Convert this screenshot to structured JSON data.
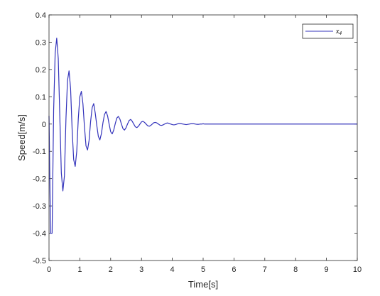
{
  "chart_data": {
    "type": "line",
    "title": "",
    "xlabel": "Time[s]",
    "ylabel": "Speed[m/s]",
    "xlim": [
      0,
      10
    ],
    "ylim": [
      -0.5,
      0.4
    ],
    "xticks": [
      0,
      1,
      2,
      3,
      4,
      5,
      6,
      7,
      8,
      9,
      10
    ],
    "yticks": [
      -0.5,
      -0.4,
      -0.3,
      -0.2,
      -0.1,
      0,
      0.1,
      0.2,
      0.3,
      0.4
    ],
    "xtick_labels": [
      "0",
      "1",
      "2",
      "3",
      "4",
      "5",
      "6",
      "7",
      "8",
      "9",
      "10"
    ],
    "ytick_labels": [
      "-0.5",
      "-0.4",
      "-0.3",
      "-0.2",
      "-0.1",
      "0",
      "0.1",
      "0.2",
      "0.3",
      "0.4"
    ],
    "grid": false,
    "legend_position": "top-right",
    "series": [
      {
        "name": "x4",
        "color": "#3333bb",
        "x": [
          0.0,
          0.05,
          0.1,
          0.15,
          0.2,
          0.25,
          0.3,
          0.35,
          0.4,
          0.45,
          0.5,
          0.55,
          0.6,
          0.65,
          0.7,
          0.75,
          0.8,
          0.85,
          0.9,
          0.95,
          1.0,
          1.05,
          1.1,
          1.15,
          1.2,
          1.25,
          1.3,
          1.35,
          1.4,
          1.45,
          1.5,
          1.55,
          1.6,
          1.65,
          1.7,
          1.75,
          1.8,
          1.85,
          1.9,
          1.95,
          2.0,
          2.05,
          2.1,
          2.15,
          2.2,
          2.25,
          2.3,
          2.35,
          2.4,
          2.45,
          2.5,
          2.55,
          2.6,
          2.65,
          2.7,
          2.75,
          2.8,
          2.85,
          2.9,
          2.95,
          3.0,
          3.05,
          3.1,
          3.15,
          3.2,
          3.25,
          3.3,
          3.35,
          3.4,
          3.45,
          3.5,
          3.55,
          3.6,
          3.65,
          3.7,
          3.75,
          3.8,
          3.85,
          3.9,
          3.95,
          4.0,
          4.05,
          4.1,
          4.15,
          4.2,
          4.25,
          4.3,
          4.35,
          4.4,
          4.45,
          4.5,
          4.55,
          4.6,
          4.65,
          4.7,
          4.75,
          4.8,
          4.85,
          4.9,
          4.95,
          5.0,
          5.05,
          5.1,
          5.15,
          5.2,
          5.25,
          5.3,
          5.35,
          5.4,
          5.45,
          5.5,
          5.55,
          5.6,
          5.65,
          5.7,
          5.75,
          5.8,
          5.85,
          5.9,
          5.95,
          6.0,
          7.0,
          8.0,
          9.0,
          10.0
        ],
        "y": [
          0.03,
          -0.4,
          -0.4,
          0.05,
          0.26,
          0.315,
          0.24,
          0.03,
          -0.18,
          -0.245,
          -0.19,
          0.02,
          0.16,
          0.195,
          0.13,
          -0.02,
          -0.13,
          -0.155,
          -0.1,
          0.02,
          0.1,
          0.12,
          0.075,
          -0.01,
          -0.08,
          -0.095,
          -0.06,
          0.01,
          0.06,
          0.075,
          0.04,
          -0.005,
          -0.045,
          -0.058,
          -0.035,
          0.005,
          0.035,
          0.046,
          0.03,
          0.0,
          -0.028,
          -0.036,
          -0.022,
          0.002,
          0.022,
          0.028,
          0.018,
          0.0,
          -0.017,
          -0.022,
          -0.013,
          0.001,
          0.013,
          0.017,
          0.01,
          0.0,
          -0.01,
          -0.013,
          -0.008,
          0.0,
          0.008,
          0.01,
          0.006,
          0.0,
          -0.006,
          -0.008,
          -0.005,
          0.0,
          0.005,
          0.006,
          0.004,
          0.0,
          -0.004,
          -0.005,
          -0.003,
          0.0,
          0.003,
          0.004,
          0.002,
          0.0,
          -0.002,
          -0.003,
          -0.002,
          0.0,
          0.002,
          0.002,
          0.001,
          0.0,
          -0.001,
          -0.002,
          -0.001,
          0.0,
          0.001,
          0.001,
          0.001,
          0.0,
          -0.001,
          -0.001,
          0.0,
          0.0,
          0.001,
          0.0,
          0.0,
          0.0,
          0.0,
          0.0,
          0.0,
          0.0,
          0.0,
          0.0,
          0.0,
          0.0,
          0.0,
          0.0,
          0.0,
          0.0,
          0.0,
          0.0,
          0.0,
          0.0,
          0.0,
          0.0,
          0.0,
          0.0,
          0.0
        ]
      }
    ]
  },
  "legend": {
    "label": "x",
    "subscript": "4"
  }
}
